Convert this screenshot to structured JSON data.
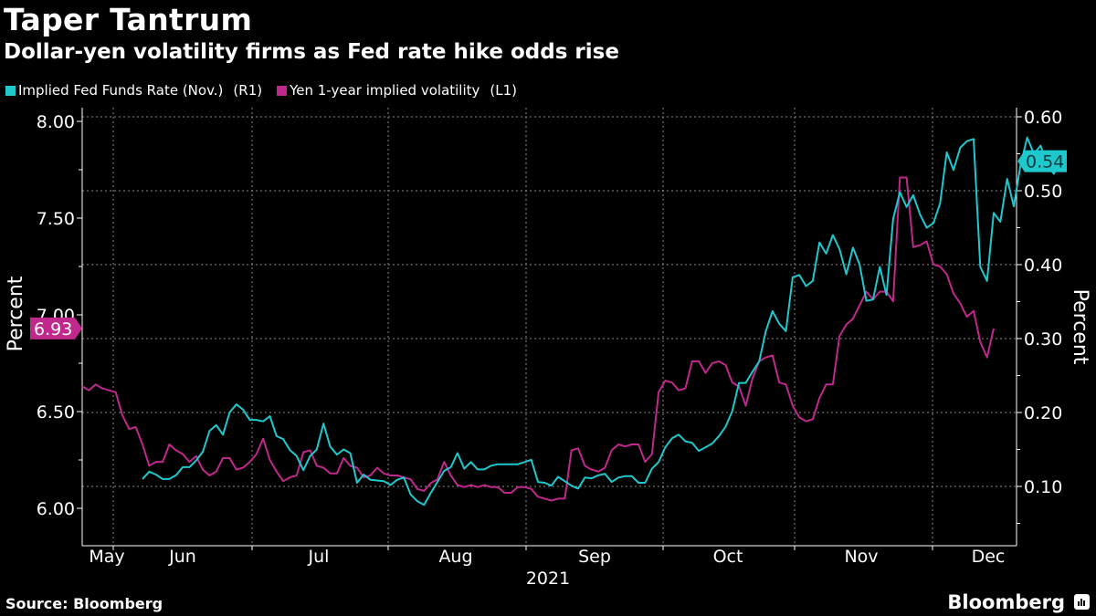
{
  "header": {
    "title": "Taper Tantrum",
    "subtitle": "Dollar-yen volatility firms as Fed rate hike odds rise"
  },
  "footer": {
    "source": "Source: Bloomberg",
    "brand": "Bloomberg",
    "brand_icon": "bar-chart-icon"
  },
  "colors": {
    "background": "#000000",
    "fed_funds": "#1ec8cc",
    "yen_vol": "#c0288c",
    "grid": "#8a8a8a",
    "text": "#ffffff"
  },
  "chart_data": {
    "type": "line",
    "title": "Taper Tantrum",
    "subtitle": "Dollar-yen volatility firms as Fed rate hike odds rise",
    "xlabel": "2021",
    "x_ticks": [
      "May",
      "Jun",
      "Jul",
      "Aug",
      "Sep",
      "Oct",
      "Nov",
      "Dec"
    ],
    "left_axis": {
      "label": "Percent",
      "ylim": [
        5.8,
        8.1
      ],
      "ticks": [
        "6.00",
        "6.50",
        "7.00",
        "7.50",
        "8.00"
      ]
    },
    "right_axis": {
      "label": "Percent",
      "ylim": [
        0.03,
        0.61
      ],
      "ticks": [
        "0.10",
        "0.20",
        "0.30",
        "0.40",
        "0.50",
        "0.60"
      ]
    },
    "grid": true,
    "legend_position": "top-left",
    "series": [
      {
        "name": "Implied Fed Funds Rate (Nov.)",
        "axis_tag": "(R1)",
        "axis": "right",
        "last_value_label": "0.54",
        "start_index": 9,
        "values": [
          0.11,
          0.12,
          0.116,
          0.11,
          0.11,
          0.115,
          0.126,
          0.126,
          0.135,
          0.147,
          0.175,
          0.183,
          0.17,
          0.2,
          0.211,
          0.204,
          0.19,
          0.19,
          0.188,
          0.195,
          0.168,
          0.164,
          0.149,
          0.141,
          0.122,
          0.141,
          0.15,
          0.185,
          0.154,
          0.143,
          0.15,
          0.145,
          0.105,
          0.116,
          0.109,
          0.108,
          0.107,
          0.102,
          0.109,
          0.112,
          0.089,
          0.08,
          0.075,
          0.091,
          0.106,
          0.121,
          0.126,
          0.145,
          0.124,
          0.133,
          0.123,
          0.123,
          0.128,
          0.13,
          0.13,
          0.13,
          0.13,
          0.133,
          0.136,
          0.106,
          0.105,
          0.101,
          0.113,
          0.107,
          0.101,
          0.097,
          0.112,
          0.111,
          0.115,
          0.117,
          0.106,
          0.112,
          0.114,
          0.114,
          0.105,
          0.105,
          0.124,
          0.133,
          0.153,
          0.165,
          0.17,
          0.161,
          0.159,
          0.148,
          0.153,
          0.158,
          0.168,
          0.181,
          0.202,
          0.24,
          0.24,
          0.255,
          0.269,
          0.31,
          0.337,
          0.32,
          0.31,
          0.383,
          0.386,
          0.371,
          0.378,
          0.43,
          0.415,
          0.44,
          0.421,
          0.387,
          0.423,
          0.4,
          0.351,
          0.353,
          0.397,
          0.359,
          0.462,
          0.498,
          0.478,
          0.494,
          0.468,
          0.45,
          0.456,
          0.483,
          0.552,
          0.528,
          0.558,
          0.567,
          0.57,
          0.397,
          0.378,
          0.47,
          0.458,
          0.516,
          0.479,
          0.535,
          0.572,
          0.55,
          0.561,
          0.533,
          0.523,
          0.545
        ]
      },
      {
        "name": "Yen 1-year implied volatility",
        "axis_tag": "(L1)",
        "axis": "left",
        "last_value_label": "6.93",
        "start_index": 0,
        "values": [
          6.63,
          6.61,
          6.64,
          6.62,
          6.61,
          6.6,
          6.48,
          6.41,
          6.42,
          6.33,
          6.22,
          6.24,
          6.24,
          6.33,
          6.3,
          6.28,
          6.24,
          6.27,
          6.2,
          6.17,
          6.19,
          6.26,
          6.26,
          6.2,
          6.21,
          6.24,
          6.28,
          6.36,
          6.25,
          6.19,
          6.14,
          6.16,
          6.17,
          6.29,
          6.3,
          6.22,
          6.21,
          6.18,
          6.18,
          6.26,
          6.22,
          6.21,
          6.16,
          6.17,
          6.21,
          6.18,
          6.17,
          6.17,
          6.16,
          6.15,
          6.1,
          6.09,
          6.13,
          6.15,
          6.24,
          6.17,
          6.12,
          6.11,
          6.12,
          6.11,
          6.12,
          6.11,
          6.11,
          6.08,
          6.08,
          6.11,
          6.11,
          6.1,
          6.06,
          6.05,
          6.04,
          6.05,
          6.05,
          6.3,
          6.31,
          6.22,
          6.2,
          6.19,
          6.21,
          6.3,
          6.33,
          6.32,
          6.33,
          6.33,
          6.24,
          6.28,
          6.6,
          6.66,
          6.65,
          6.61,
          6.62,
          6.76,
          6.76,
          6.7,
          6.75,
          6.76,
          6.74,
          6.65,
          6.63,
          6.53,
          6.67,
          6.76,
          6.78,
          6.79,
          6.65,
          6.64,
          6.53,
          6.47,
          6.45,
          6.46,
          6.57,
          6.64,
          6.64,
          6.89,
          6.95,
          6.98,
          7.05,
          7.12,
          7.08,
          7.12,
          7.12,
          7.07,
          7.71,
          7.71,
          7.35,
          7.36,
          7.38,
          7.26,
          7.25,
          7.21,
          7.11,
          7.06,
          6.99,
          7.02,
          6.86,
          6.78,
          6.93
        ]
      }
    ]
  }
}
